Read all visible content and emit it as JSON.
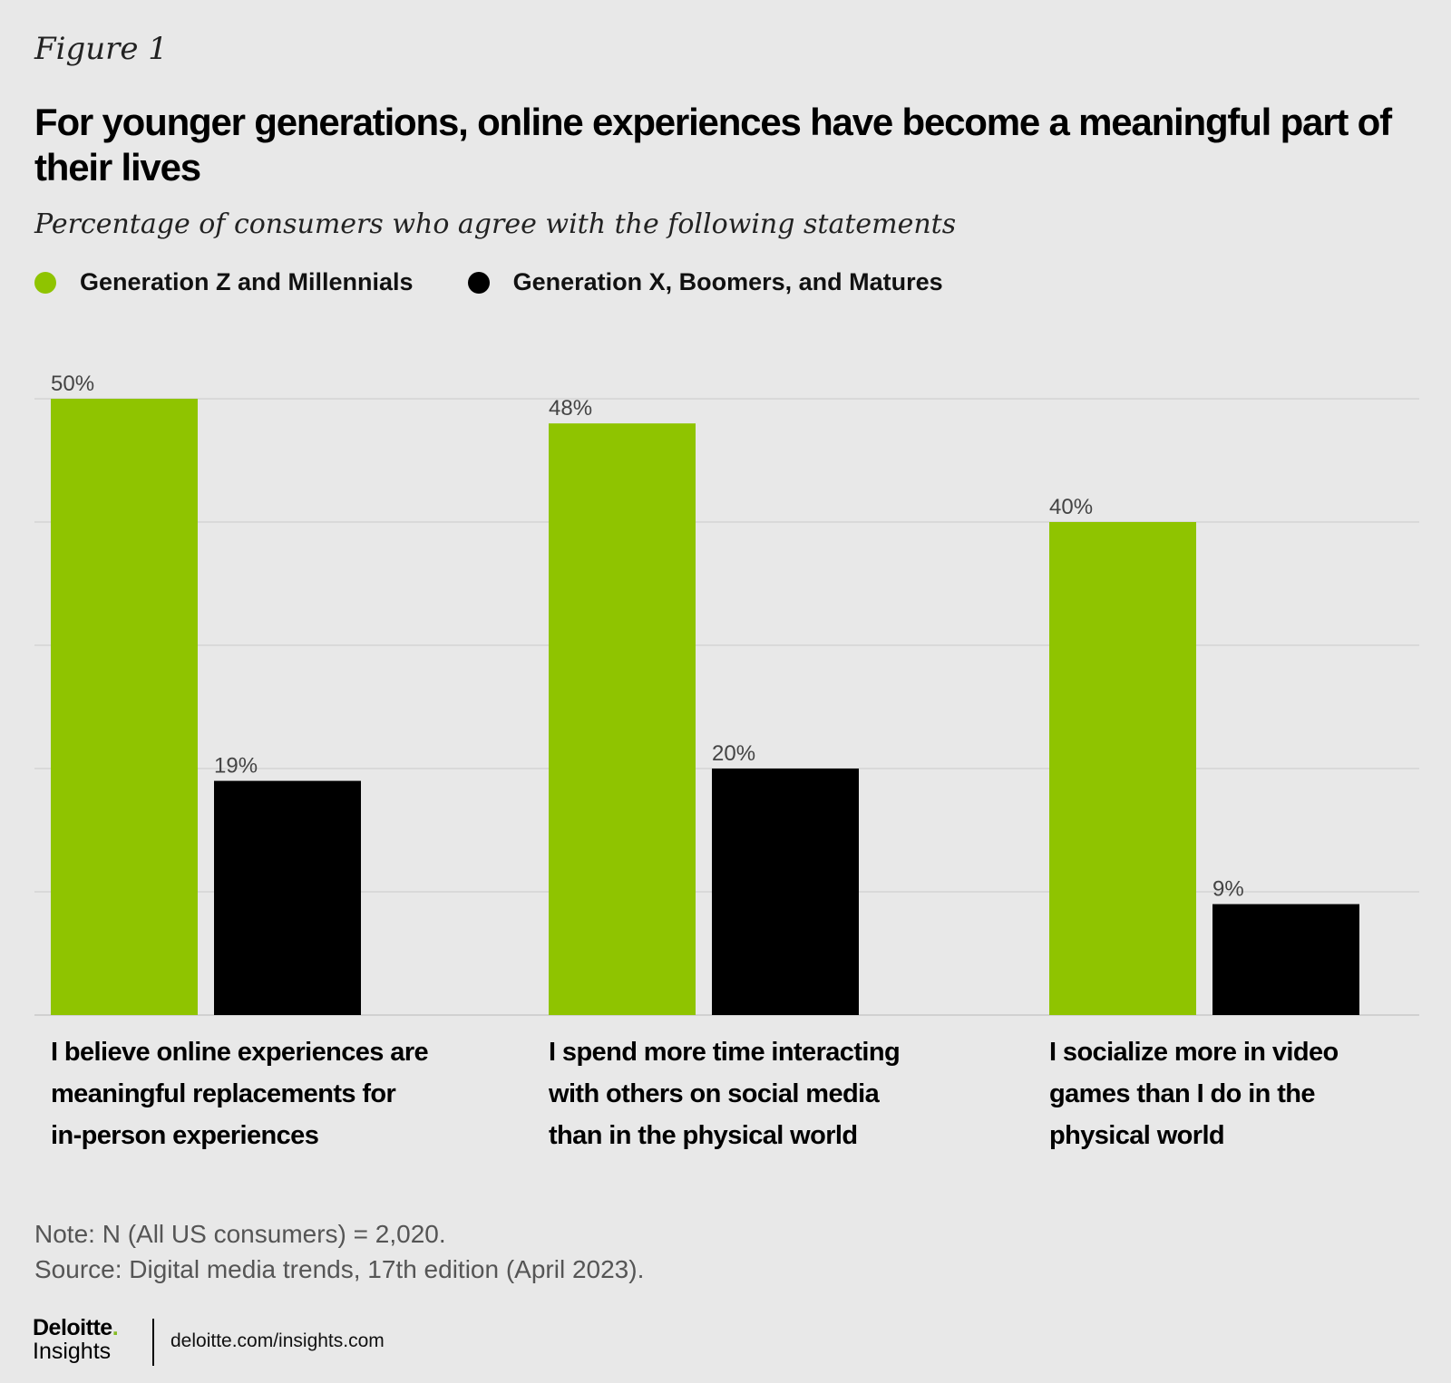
{
  "figure_label": "Figure 1",
  "legend": [
    {
      "name": "Generation Z and Millennials",
      "color": "#8fc400"
    },
    {
      "name": "Generation X, Boomers, and Matures",
      "color": "#000000"
    }
  ],
  "chart_data": {
    "type": "bar",
    "title": "For younger generations, online experiences have become a meaningful part of their lives",
    "subtitle": "Percentage of consumers who agree with the following statements",
    "categories": [
      "I believe online experiences are meaningful replacements for in-person experiences",
      "I spend more time interacting with others on social media than in the physical world",
      "I socialize more in video games than I do in the physical world"
    ],
    "series": [
      {
        "name": "Generation Z and Millennials",
        "values": [
          50,
          48,
          40
        ],
        "labels": [
          "50%",
          "48%",
          "40%"
        ],
        "color": "#8fc400"
      },
      {
        "name": "Generation X, Boomers, and Matures",
        "values": [
          19,
          20,
          9
        ],
        "labels": [
          "19%",
          "20%",
          "9%"
        ],
        "color": "#000000"
      }
    ],
    "ylim": [
      0,
      50
    ],
    "gridlines": [
      0,
      10,
      20,
      30,
      40,
      50
    ],
    "grid": true,
    "legend_position": "top-left",
    "xlabel": "",
    "ylabel": ""
  },
  "note": "Note: N (All US consumers) = 2,020.",
  "source": "Source: Digital media trends, 17th edition (April 2023).",
  "brand": {
    "name": "Deloitte",
    "dot": ".",
    "sub": "Insights"
  },
  "site": "deloitte.com/insights.com"
}
